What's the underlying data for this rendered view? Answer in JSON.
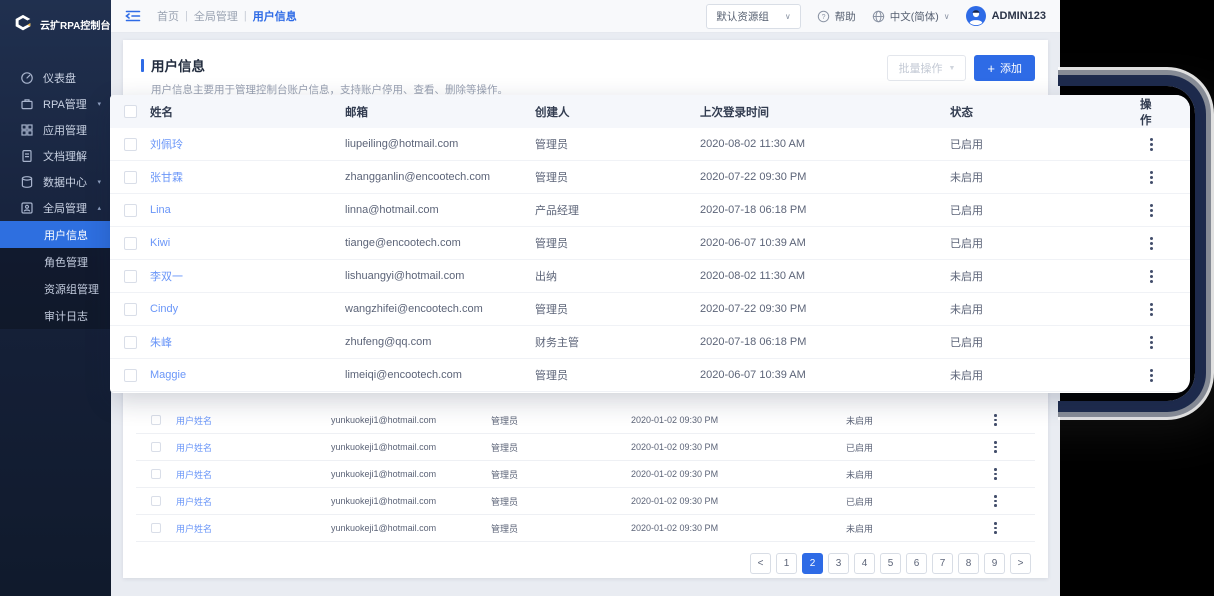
{
  "logo_text": "云扩RPA控制台",
  "sidebar": {
    "items": [
      {
        "label": "仪表盘",
        "icon": "dashboard-icon",
        "caret": ""
      },
      {
        "label": "RPA管理",
        "icon": "rpa-icon",
        "caret": "▾"
      },
      {
        "label": "应用管理",
        "icon": "apps-icon",
        "caret": ""
      },
      {
        "label": "文档理解",
        "icon": "document-icon",
        "caret": ""
      },
      {
        "label": "数据中心",
        "icon": "database-icon",
        "caret": "▾"
      },
      {
        "label": "全局管理",
        "icon": "global-icon",
        "caret": "▴"
      }
    ],
    "submenu": [
      {
        "label": "用户信息",
        "active": true
      },
      {
        "label": "角色管理",
        "active": false
      },
      {
        "label": "资源组管理",
        "active": false
      },
      {
        "label": "审计日志",
        "active": false
      }
    ]
  },
  "topbar": {
    "breadcrumb": [
      "首页",
      "全局管理",
      "用户信息"
    ],
    "separator": "|",
    "resource_select": "默认资源组",
    "help_label": "帮助",
    "language_label": "中文(简体)",
    "username": "ADMIN123"
  },
  "page": {
    "title": "用户信息",
    "description": "用户信息主要用于管理控制台账户信息，支持账户停用、查看、删除等操作。",
    "bulk_button": "批量操作",
    "add_button": "添加",
    "add_plus": "+"
  },
  "table": {
    "columns": [
      "姓名",
      "邮箱",
      "创建人",
      "上次登录时间",
      "状态",
      "操作"
    ],
    "overlay_rows": [
      {
        "name": "刘佩玲",
        "email": "liupeiling@hotmail.com",
        "creator": "管理员",
        "last_login": "2020-08-02  11:30 AM",
        "status": "已启用"
      },
      {
        "name": "张甘霖",
        "email": "zhangganlin@encootech.com",
        "creator": "管理员",
        "last_login": "2020-07-22  09:30 PM",
        "status": "未启用"
      },
      {
        "name": "Lina",
        "email": "linna@hotmail.com",
        "creator": "产品经理",
        "last_login": "2020-07-18  06:18 PM",
        "status": "已启用"
      },
      {
        "name": "Kiwi",
        "email": "tiange@encootech.com",
        "creator": "管理员",
        "last_login": "2020-06-07  10:39 AM",
        "status": "已启用"
      },
      {
        "name": "李双一",
        "email": "lishuangyi@hotmail.com",
        "creator": "出纳",
        "last_login": "2020-08-02  11:30 AM",
        "status": "未启用"
      },
      {
        "name": "Cindy",
        "email": "wangzhifei@encootech.com",
        "creator": "管理员",
        "last_login": "2020-07-22  09:30 PM",
        "status": "未启用"
      },
      {
        "name": "朱峰",
        "email": "zhufeng@qq.com",
        "creator": "财务主管",
        "last_login": "2020-07-18  06:18 PM",
        "status": "已启用"
      },
      {
        "name": "Maggie",
        "email": "limeiqi@encootech.com",
        "creator": "管理员",
        "last_login": "2020-06-07  10:39 AM",
        "status": "未启用"
      }
    ],
    "background_rows": [
      {
        "name": "用户姓名",
        "email": "yunkuokeji1@hotmail.com",
        "creator": "管理员",
        "last_login": "2020-01-02  09:30 PM",
        "status": "未启用"
      },
      {
        "name": "用户姓名",
        "email": "yunkuokeji1@hotmail.com",
        "creator": "管理员",
        "last_login": "2020-01-02  09:30 PM",
        "status": "已启用"
      },
      {
        "name": "用户姓名",
        "email": "yunkuokeji1@hotmail.com",
        "creator": "管理员",
        "last_login": "2020-01-02  09:30 PM",
        "status": "未启用"
      },
      {
        "name": "用户姓名",
        "email": "yunkuokeji1@hotmail.com",
        "creator": "管理员",
        "last_login": "2020-01-02  09:30 PM",
        "status": "已启用"
      },
      {
        "name": "用户姓名",
        "email": "yunkuokeji1@hotmail.com",
        "creator": "管理员",
        "last_login": "2020-01-02  09:30 PM",
        "status": "未启用"
      }
    ]
  },
  "pagination": {
    "prev_label": "<",
    "next_label": ">",
    "pages": [
      "1",
      "2",
      "3",
      "4",
      "5",
      "6",
      "7",
      "8",
      "9"
    ],
    "active_page": "2"
  },
  "colors": {
    "accent": "#2e6be6",
    "active_menu_bg": "#2e6fe0",
    "sidebar_bg": "#16213a",
    "name_link": "#6a96f8",
    "logo_accent_yellow": "#f0b43c"
  }
}
